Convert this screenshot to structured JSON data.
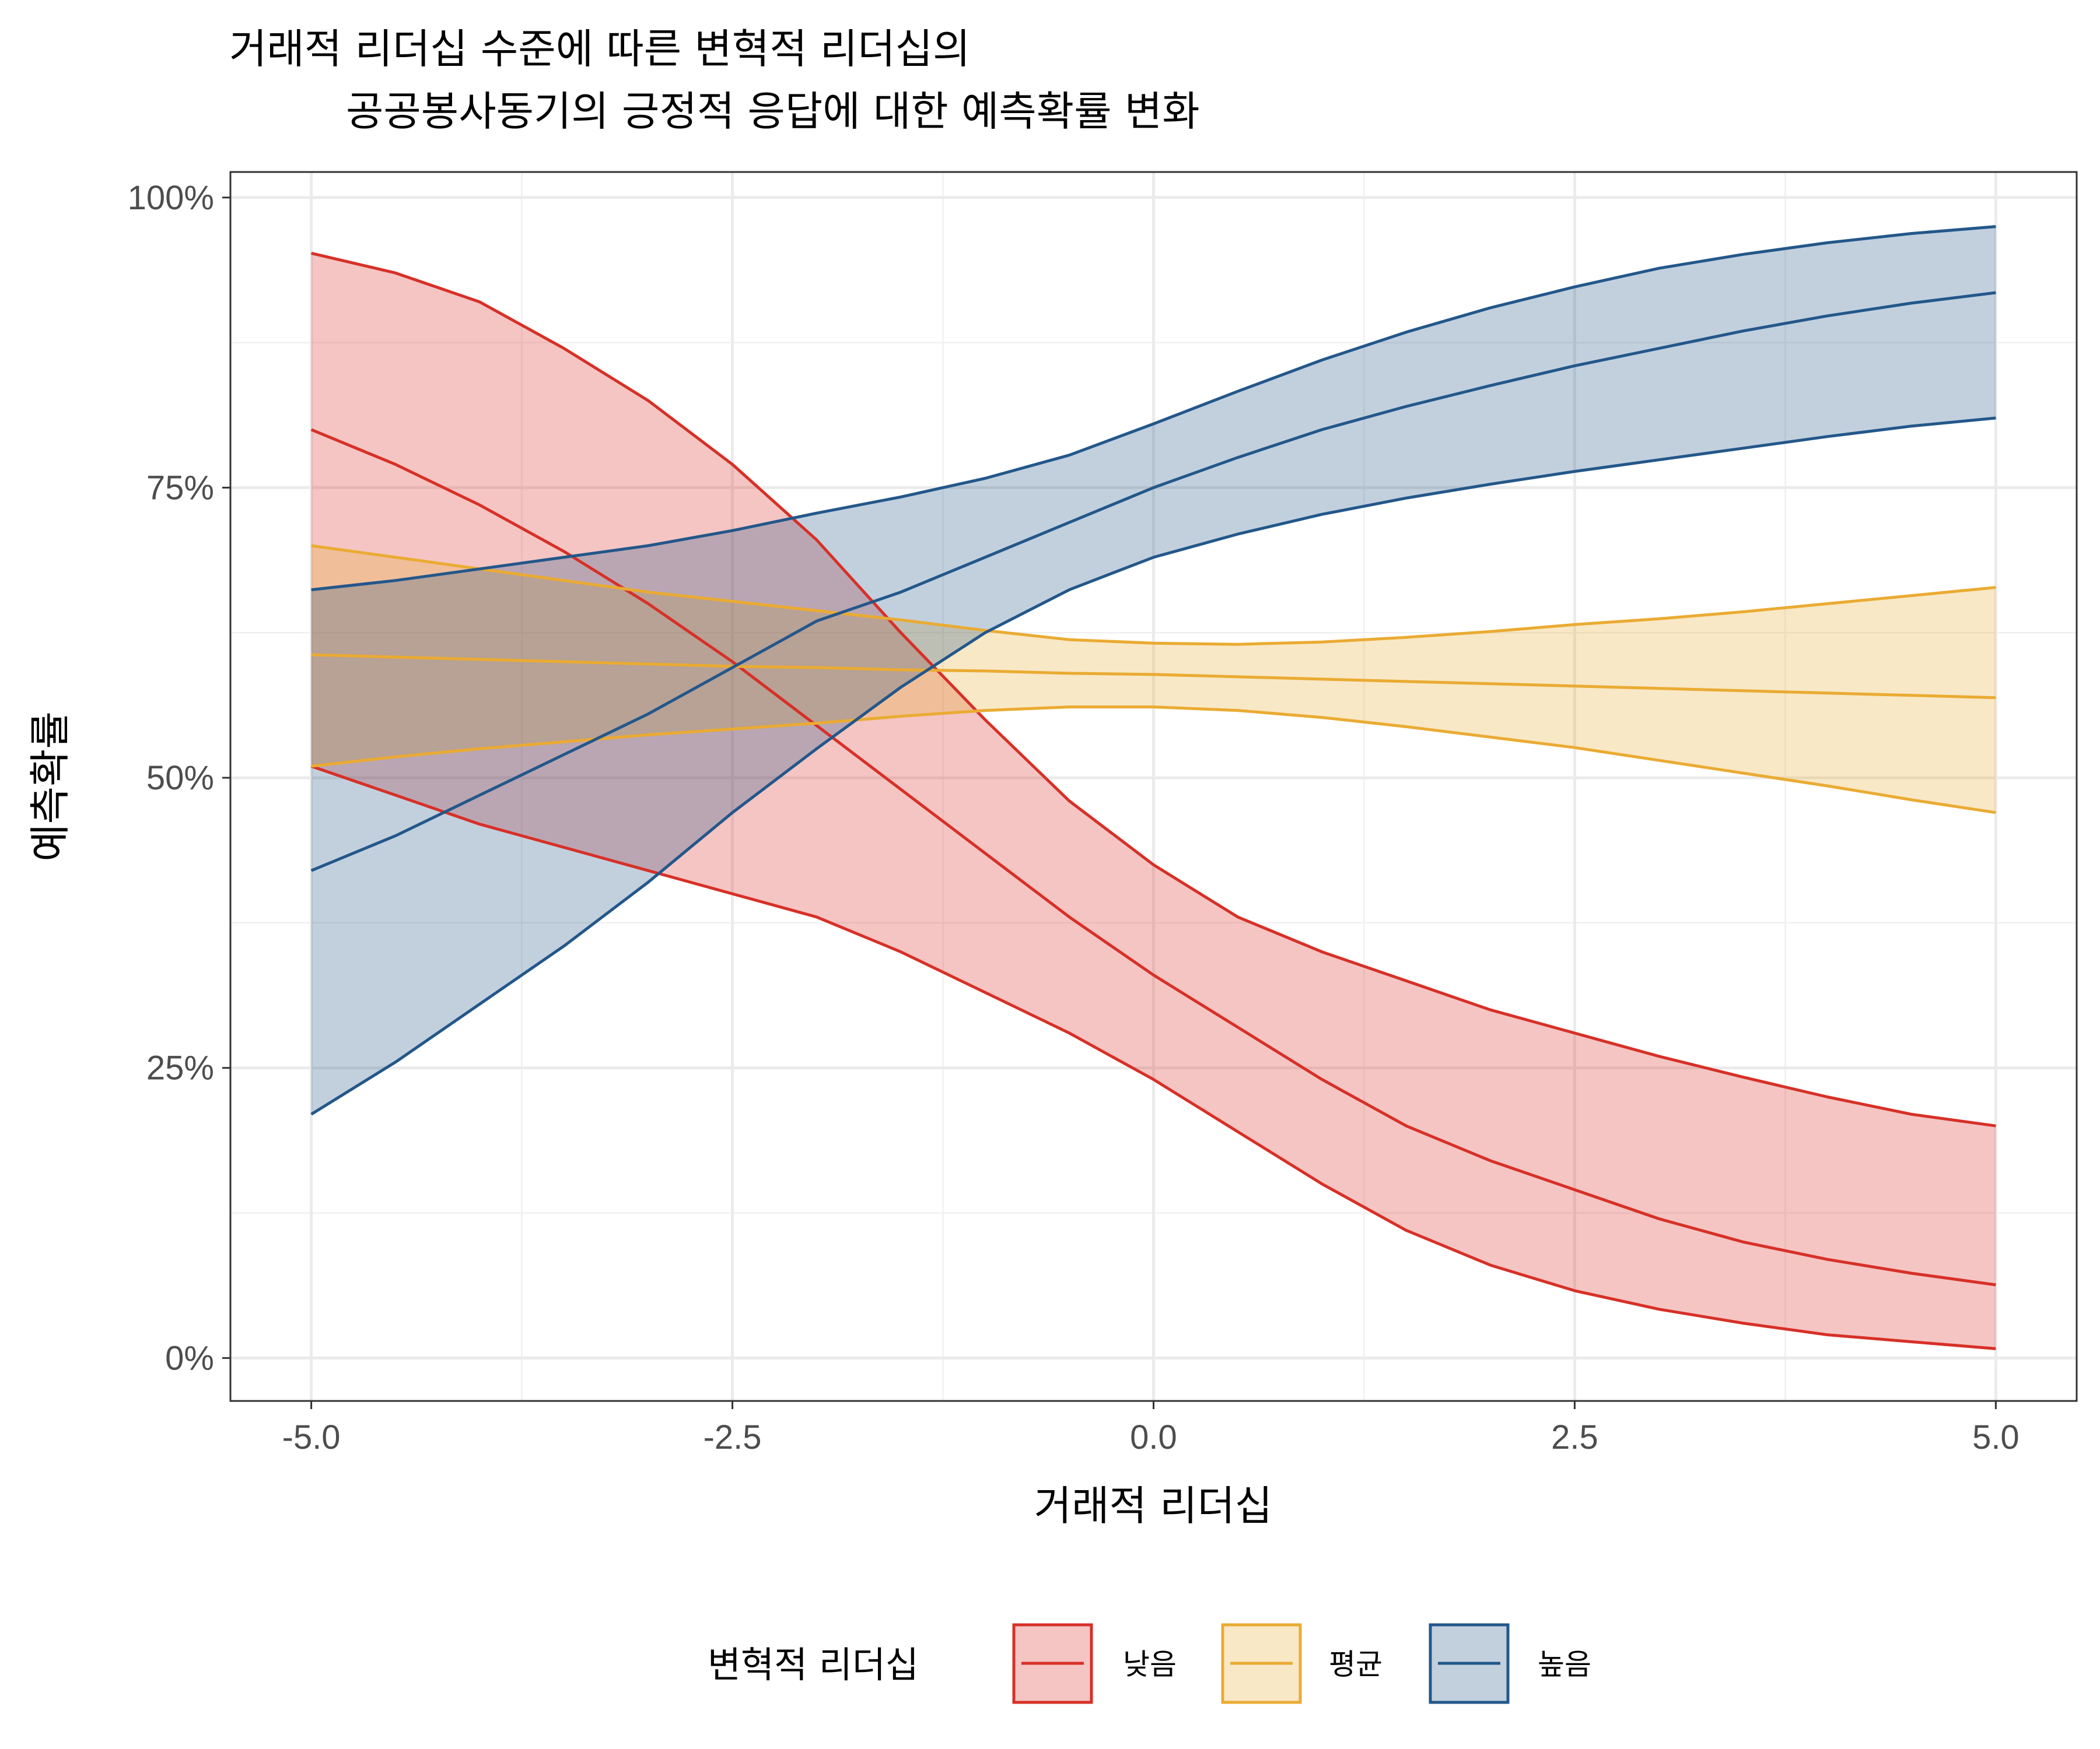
{
  "chart_data": {
    "type": "line",
    "title": [
      "거래적 리더십 수준에 따른 변혁적 리더십의",
      "공공봉사동기의 긍정적 응답에 대한 예측확률 변화"
    ],
    "xlabel": "거래적 리더십",
    "ylabel": "예측확률",
    "xlim": [
      -5.48,
      5.48
    ],
    "ylim": [
      -0.037,
      1.022
    ],
    "x_ticks": [
      -5,
      -2.5,
      0,
      2.5,
      5
    ],
    "x_tick_labels": [
      "-5.0",
      "-2.5",
      "0.0",
      "2.5",
      "5.0"
    ],
    "y_ticks": [
      0,
      0.25,
      0.5,
      0.75,
      1
    ],
    "y_tick_labels": [
      "0%",
      "25%",
      "50%",
      "75%",
      "100%"
    ],
    "grid": true,
    "legend": {
      "title": "변혁적 리더십",
      "position": "bottom"
    },
    "x": [
      -5,
      -4.5,
      -4,
      -3.5,
      -3,
      -2.5,
      -2,
      -1.5,
      -1,
      -0.5,
      0,
      0.5,
      1,
      1.5,
      2,
      2.5,
      3,
      3.5,
      4,
      4.5,
      5
    ],
    "series": [
      {
        "name": "낮음",
        "color": "#d73027",
        "fill": "#f4c1bf",
        "mean": [
          0.8,
          0.77,
          0.735,
          0.695,
          0.65,
          0.6,
          0.545,
          0.49,
          0.435,
          0.38,
          0.33,
          0.285,
          0.24,
          0.2,
          0.17,
          0.145,
          0.12,
          0.1,
          0.085,
          0.073,
          0.063
        ],
        "lower": [
          0.51,
          0.485,
          0.46,
          0.44,
          0.42,
          0.4,
          0.38,
          0.35,
          0.315,
          0.28,
          0.24,
          0.195,
          0.15,
          0.11,
          0.08,
          0.058,
          0.042,
          0.03,
          0.02,
          0.014,
          0.008
        ],
        "upper": [
          0.952,
          0.935,
          0.91,
          0.87,
          0.825,
          0.77,
          0.705,
          0.625,
          0.55,
          0.48,
          0.425,
          0.38,
          0.35,
          0.325,
          0.3,
          0.28,
          0.26,
          0.242,
          0.225,
          0.21,
          0.2
        ]
      },
      {
        "name": "평균",
        "color": "#eaab32",
        "fill": "#f8e4b9",
        "mean": [
          0.606,
          0.604,
          0.602,
          0.6,
          0.598,
          0.596,
          0.595,
          0.593,
          0.592,
          0.59,
          0.589,
          0.587,
          0.585,
          0.583,
          0.581,
          0.579,
          0.577,
          0.575,
          0.573,
          0.571,
          0.569
        ],
        "lower": [
          0.51,
          0.518,
          0.525,
          0.531,
          0.537,
          0.542,
          0.547,
          0.553,
          0.558,
          0.561,
          0.561,
          0.558,
          0.552,
          0.544,
          0.535,
          0.526,
          0.515,
          0.504,
          0.493,
          0.481,
          0.47
        ],
        "upper": [
          0.7,
          0.69,
          0.68,
          0.67,
          0.66,
          0.652,
          0.644,
          0.636,
          0.627,
          0.619,
          0.616,
          0.615,
          0.617,
          0.621,
          0.626,
          0.632,
          0.637,
          0.643,
          0.65,
          0.657,
          0.664
        ]
      },
      {
        "name": "높음",
        "color": "#23578a",
        "fill": "#bfd0df",
        "mean": [
          0.42,
          0.45,
          0.485,
          0.52,
          0.555,
          0.595,
          0.635,
          0.66,
          0.69,
          0.72,
          0.75,
          0.776,
          0.8,
          0.82,
          0.838,
          0.855,
          0.87,
          0.885,
          0.898,
          0.909,
          0.918
        ],
        "lower": [
          0.21,
          0.255,
          0.305,
          0.355,
          0.41,
          0.47,
          0.525,
          0.578,
          0.625,
          0.662,
          0.69,
          0.71,
          0.727,
          0.741,
          0.753,
          0.764,
          0.774,
          0.784,
          0.794,
          0.803,
          0.81
        ],
        "upper": [
          0.662,
          0.67,
          0.68,
          0.69,
          0.7,
          0.713,
          0.728,
          0.742,
          0.758,
          0.778,
          0.805,
          0.833,
          0.86,
          0.884,
          0.905,
          0.923,
          0.939,
          0.951,
          0.961,
          0.969,
          0.975
        ]
      }
    ]
  }
}
